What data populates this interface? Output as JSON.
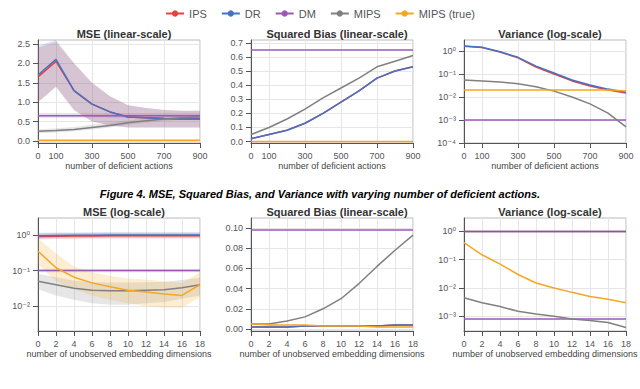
{
  "chart_data": [
    {
      "type": "line",
      "title": "MSE (linear-scale)",
      "xlabel": "number of deficient actions",
      "legend": "top",
      "grid": true,
      "annotations": [
        "Figure 4. MSE, Squared Bias, and Variance with ",
        "varying number of deficient actions",
        "."
      ],
      "x": [
        0,
        100,
        200,
        300,
        400,
        500,
        600,
        700,
        800,
        900
      ],
      "xlim": [
        0,
        900
      ],
      "xticks": [
        0,
        100,
        300,
        500,
        700,
        900
      ],
      "ylim": [
        -0.05,
        2.6
      ],
      "yticks": [
        {
          "value": 0,
          "label": "0.0"
        },
        0.5,
        {
          "value": 1,
          "label": "1.0"
        },
        1.5,
        {
          "value": 2,
          "label": "2.0"
        },
        2.5
      ],
      "series": [
        {
          "name": "IPS",
          "color": "#e8413e",
          "values": [
            1.65,
            2.05,
            1.3,
            0.95,
            0.75,
            0.62,
            0.6,
            0.58,
            0.57,
            0.57
          ],
          "lo": [
            1.0,
            1.4,
            0.8,
            0.5,
            0.4,
            0.35,
            0.35,
            0.35,
            0.35,
            0.35
          ],
          "hi": [
            2.4,
            2.55,
            2.0,
            1.5,
            1.15,
            0.92,
            0.85,
            0.8,
            0.78,
            0.78
          ]
        },
        {
          "name": "DR",
          "color": "#4472c4",
          "values": [
            1.7,
            2.1,
            1.3,
            0.95,
            0.75,
            0.62,
            0.6,
            0.58,
            0.57,
            0.57
          ],
          "lo": [
            1.0,
            1.4,
            0.8,
            0.5,
            0.4,
            0.35,
            0.35,
            0.35,
            0.35,
            0.35
          ],
          "hi": [
            2.45,
            2.6,
            2.0,
            1.5,
            1.15,
            0.92,
            0.85,
            0.8,
            0.78,
            0.78
          ]
        },
        {
          "name": "DM",
          "color": "#9b59b6",
          "values": [
            0.65,
            0.65,
            0.65,
            0.65,
            0.65,
            0.65,
            0.65,
            0.65,
            0.65,
            0.65
          ],
          "lo": [
            0.6,
            0.6,
            0.6,
            0.6,
            0.6,
            0.6,
            0.6,
            0.6,
            0.6,
            0.6
          ],
          "hi": [
            0.72,
            0.72,
            0.72,
            0.72,
            0.72,
            0.72,
            0.72,
            0.72,
            0.72,
            0.72
          ]
        },
        {
          "name": "MIPS",
          "color": "#808080",
          "values": [
            0.25,
            0.27,
            0.3,
            0.35,
            0.4,
            0.47,
            0.52,
            0.57,
            0.6,
            0.62
          ],
          "lo": [
            0.2,
            0.22,
            0.25,
            0.3,
            0.35,
            0.42,
            0.47,
            0.52,
            0.55,
            0.57
          ],
          "hi": [
            0.3,
            0.33,
            0.36,
            0.42,
            0.47,
            0.53,
            0.58,
            0.63,
            0.66,
            0.68
          ]
        },
        {
          "name": "MIPS (true)",
          "color": "#f5a623",
          "values": [
            0.02,
            0.02,
            0.02,
            0.02,
            0.02,
            0.02,
            0.02,
            0.02,
            0.02,
            0.02
          ]
        }
      ]
    },
    {
      "type": "line",
      "title": "Squared Bias (linear-scale)",
      "xlabel": "number of deficient actions",
      "grid": true,
      "x": [
        0,
        100,
        200,
        300,
        400,
        500,
        600,
        700,
        800,
        900
      ],
      "xlim": [
        0,
        900
      ],
      "xticks": [
        0,
        100,
        300,
        500,
        700,
        900
      ],
      "ylim": [
        -0.01,
        0.72
      ],
      "yticks": [
        {
          "value": 0,
          "label": "0.0"
        },
        0.1,
        0.2,
        0.3,
        0.4,
        0.5,
        0.6,
        0.7
      ],
      "series": [
        {
          "name": "IPS",
          "color": "#e8413e",
          "values": [
            0.02,
            0.05,
            0.08,
            0.13,
            0.2,
            0.28,
            0.36,
            0.45,
            0.5,
            0.53
          ]
        },
        {
          "name": "DR",
          "color": "#4472c4",
          "values": [
            0.02,
            0.05,
            0.08,
            0.13,
            0.2,
            0.28,
            0.36,
            0.45,
            0.5,
            0.53
          ]
        },
        {
          "name": "DM",
          "color": "#9b59b6",
          "values": [
            0.65,
            0.65,
            0.65,
            0.65,
            0.65,
            0.65,
            0.65,
            0.65,
            0.65,
            0.65
          ]
        },
        {
          "name": "MIPS",
          "color": "#808080",
          "values": [
            0.05,
            0.1,
            0.16,
            0.23,
            0.31,
            0.38,
            0.45,
            0.53,
            0.57,
            0.61
          ]
        },
        {
          "name": "MIPS (true)",
          "color": "#f5a623",
          "values": [
            0.001,
            0.001,
            0.001,
            0.001,
            0.001,
            0.001,
            0.001,
            0.001,
            0.001,
            0.001
          ]
        }
      ]
    },
    {
      "type": "line",
      "title": "Variance (log-scale)",
      "xlabel": "number of deficient actions",
      "grid": true,
      "log": "y",
      "x": [
        0,
        100,
        200,
        300,
        400,
        500,
        600,
        700,
        800,
        900
      ],
      "xlim": [
        0,
        900
      ],
      "xticks": [
        0,
        100,
        300,
        500,
        700,
        900
      ],
      "ylim": [
        0.0001,
        3
      ],
      "yticks": [
        {
          "value": 0.0001,
          "label": "10⁻⁴"
        },
        {
          "value": 0.001,
          "label": "10⁻³"
        },
        {
          "value": 0.01,
          "label": "10⁻²"
        },
        {
          "value": 0.1,
          "label": "10⁻¹"
        },
        {
          "value": 1,
          "label": "10⁰"
        }
      ],
      "series": [
        {
          "name": "IPS",
          "color": "#e8413e",
          "values": [
            1.6,
            1.4,
            0.9,
            0.5,
            0.2,
            0.1,
            0.05,
            0.03,
            0.02,
            0.015
          ]
        },
        {
          "name": "DR",
          "color": "#4472c4",
          "values": [
            1.65,
            1.45,
            0.93,
            0.53,
            0.22,
            0.11,
            0.055,
            0.033,
            0.022,
            0.016
          ]
        },
        {
          "name": "DM",
          "color": "#9b59b6",
          "values": [
            0.001,
            0.001,
            0.001,
            0.001,
            0.001,
            0.001,
            0.001,
            0.001,
            0.001,
            0.001
          ]
        },
        {
          "name": "MIPS",
          "color": "#808080",
          "values": [
            0.055,
            0.05,
            0.045,
            0.038,
            0.028,
            0.018,
            0.01,
            0.005,
            0.002,
            0.0005
          ]
        },
        {
          "name": "MIPS (true)",
          "color": "#f5a623",
          "values": [
            0.02,
            0.02,
            0.02,
            0.02,
            0.02,
            0.02,
            0.02,
            0.02,
            0.02,
            0.018
          ]
        }
      ]
    },
    {
      "type": "line",
      "title": "MSE (log-scale)",
      "xlabel": "number of unobserved embedding dimensions",
      "grid": true,
      "log": "y",
      "x": [
        0,
        2,
        4,
        6,
        8,
        10,
        12,
        14,
        16,
        18
      ],
      "xlim": [
        0,
        18
      ],
      "xticks": [
        0,
        2,
        4,
        6,
        8,
        10,
        12,
        14,
        16,
        18
      ],
      "ylim": [
        0.002,
        3
      ],
      "yticks": [
        {
          "value": 0.01,
          "label": "10⁻²"
        },
        {
          "value": 0.1,
          "label": "10⁻¹"
        },
        {
          "value": 1,
          "label": "10⁰"
        }
      ],
      "series": [
        {
          "name": "IPS",
          "color": "#e8413e",
          "values": [
            0.9,
            0.92,
            0.93,
            0.94,
            0.95,
            0.95,
            0.95,
            0.95,
            0.95,
            0.95
          ],
          "lo": [
            0.75,
            0.77,
            0.78,
            0.8,
            0.8,
            0.8,
            0.8,
            0.8,
            0.8,
            0.8
          ],
          "hi": [
            1.1,
            1.12,
            1.13,
            1.14,
            1.15,
            1.15,
            1.15,
            1.15,
            1.15,
            1.15
          ]
        },
        {
          "name": "DR",
          "color": "#4472c4",
          "values": [
            0.95,
            0.97,
            0.98,
            0.99,
            1.0,
            1.0,
            1.0,
            1.0,
            1.0,
            1.0
          ],
          "lo": [
            0.8,
            0.82,
            0.83,
            0.84,
            0.85,
            0.85,
            0.85,
            0.85,
            0.85,
            0.85
          ],
          "hi": [
            1.15,
            1.17,
            1.18,
            1.19,
            1.2,
            1.2,
            1.2,
            1.2,
            1.2,
            1.2
          ]
        },
        {
          "name": "DM",
          "color": "#9b59b6",
          "values": [
            0.1,
            0.1,
            0.1,
            0.1,
            0.1,
            0.1,
            0.1,
            0.1,
            0.1,
            0.1
          ],
          "lo": [
            0.09,
            0.09,
            0.09,
            0.09,
            0.09,
            0.09,
            0.09,
            0.09,
            0.09,
            0.09
          ],
          "hi": [
            0.11,
            0.11,
            0.11,
            0.11,
            0.11,
            0.11,
            0.11,
            0.11,
            0.11,
            0.11
          ]
        },
        {
          "name": "MIPS",
          "color": "#808080",
          "values": [
            0.05,
            0.04,
            0.032,
            0.028,
            0.027,
            0.027,
            0.028,
            0.029,
            0.033,
            0.04
          ],
          "lo": [
            0.03,
            0.02,
            0.015,
            0.012,
            0.011,
            0.011,
            0.012,
            0.013,
            0.016,
            0.02
          ],
          "hi": [
            0.08,
            0.065,
            0.052,
            0.047,
            0.046,
            0.046,
            0.047,
            0.048,
            0.054,
            0.063
          ]
        },
        {
          "name": "MIPS (true)",
          "color": "#f5a623",
          "values": [
            0.35,
            0.12,
            0.065,
            0.045,
            0.035,
            0.028,
            0.025,
            0.022,
            0.02,
            0.04
          ],
          "lo": [
            0.15,
            0.05,
            0.03,
            0.02,
            0.015,
            0.012,
            0.01,
            0.009,
            0.009,
            0.018
          ],
          "hi": [
            0.8,
            0.3,
            0.13,
            0.09,
            0.07,
            0.06,
            0.055,
            0.05,
            0.045,
            0.09
          ]
        }
      ]
    },
    {
      "type": "line",
      "title": "Squared Bias (linear-scale)",
      "xlabel": "number of unobserved embedding dimensions",
      "grid": true,
      "x": [
        0,
        2,
        4,
        6,
        8,
        10,
        12,
        14,
        16,
        18
      ],
      "xlim": [
        0,
        18
      ],
      "xticks": [
        0,
        2,
        4,
        6,
        8,
        10,
        12,
        14,
        16,
        18
      ],
      "ylim": [
        -0.002,
        0.11
      ],
      "yticks": [
        {
          "value": 0,
          "label": "0.00"
        },
        0.02,
        0.04,
        0.06,
        0.08,
        {
          "value": 0.1,
          "label": "0.10"
        }
      ],
      "series": [
        {
          "name": "IPS",
          "color": "#e8413e",
          "values": [
            0.002,
            0.002,
            0.002,
            0.003,
            0.003,
            0.003,
            0.003,
            0.003,
            0.004,
            0.004
          ]
        },
        {
          "name": "DR",
          "color": "#4472c4",
          "values": [
            0.002,
            0.002,
            0.002,
            0.003,
            0.003,
            0.003,
            0.003,
            0.003,
            0.004,
            0.004
          ]
        },
        {
          "name": "DM",
          "color": "#9b59b6",
          "values": [
            0.098,
            0.098,
            0.098,
            0.098,
            0.098,
            0.098,
            0.098,
            0.098,
            0.098,
            0.098
          ]
        },
        {
          "name": "MIPS",
          "color": "#808080",
          "values": [
            0.005,
            0.005,
            0.008,
            0.012,
            0.02,
            0.03,
            0.045,
            0.062,
            0.078,
            0.093
          ]
        },
        {
          "name": "MIPS (true)",
          "color": "#f5a623",
          "values": [
            0.005,
            0.004,
            0.004,
            0.004,
            0.003,
            0.003,
            0.003,
            0.002,
            0.002,
            0.002
          ]
        }
      ]
    },
    {
      "type": "line",
      "title": "Variance (log-scale)",
      "xlabel": "number of unobserved embedding dimensions",
      "grid": true,
      "log": "y",
      "x": [
        0,
        2,
        4,
        6,
        8,
        10,
        12,
        14,
        16,
        18
      ],
      "xlim": [
        0,
        18
      ],
      "xticks": [
        0,
        2,
        4,
        6,
        8,
        10,
        12,
        14,
        16,
        18
      ],
      "ylim": [
        0.0003,
        3
      ],
      "yticks": [
        {
          "value": 0.001,
          "label": "10⁻³"
        },
        {
          "value": 0.01,
          "label": "10⁻²"
        },
        {
          "value": 0.1,
          "label": "10⁻¹"
        },
        {
          "value": 1,
          "label": "10⁰"
        }
      ],
      "series": [
        {
          "name": "IPS",
          "color": "#e8413e",
          "values": [
            1.0,
            1.0,
            1.0,
            1.0,
            1.0,
            1.0,
            1.0,
            1.0,
            1.0,
            1.0
          ]
        },
        {
          "name": "DR",
          "color": "#4472c4",
          "values": [
            1.0,
            1.0,
            1.0,
            1.0,
            1.0,
            1.0,
            1.0,
            1.0,
            1.0,
            1.0
          ]
        },
        {
          "name": "DM",
          "color": "#9b59b6",
          "values": [
            0.0008,
            0.0008,
            0.0008,
            0.0008,
            0.0008,
            0.0008,
            0.0008,
            0.0008,
            0.0008,
            0.0008
          ]
        },
        {
          "name": "MIPS",
          "color": "#808080",
          "values": [
            0.0045,
            0.003,
            0.0022,
            0.0015,
            0.0012,
            0.001,
            0.0008,
            0.0007,
            0.0006,
            0.0004
          ]
        },
        {
          "name": "MIPS (true)",
          "color": "#f5a623",
          "values": [
            0.4,
            0.15,
            0.07,
            0.03,
            0.015,
            0.01,
            0.007,
            0.005,
            0.004,
            0.003
          ]
        }
      ]
    }
  ]
}
